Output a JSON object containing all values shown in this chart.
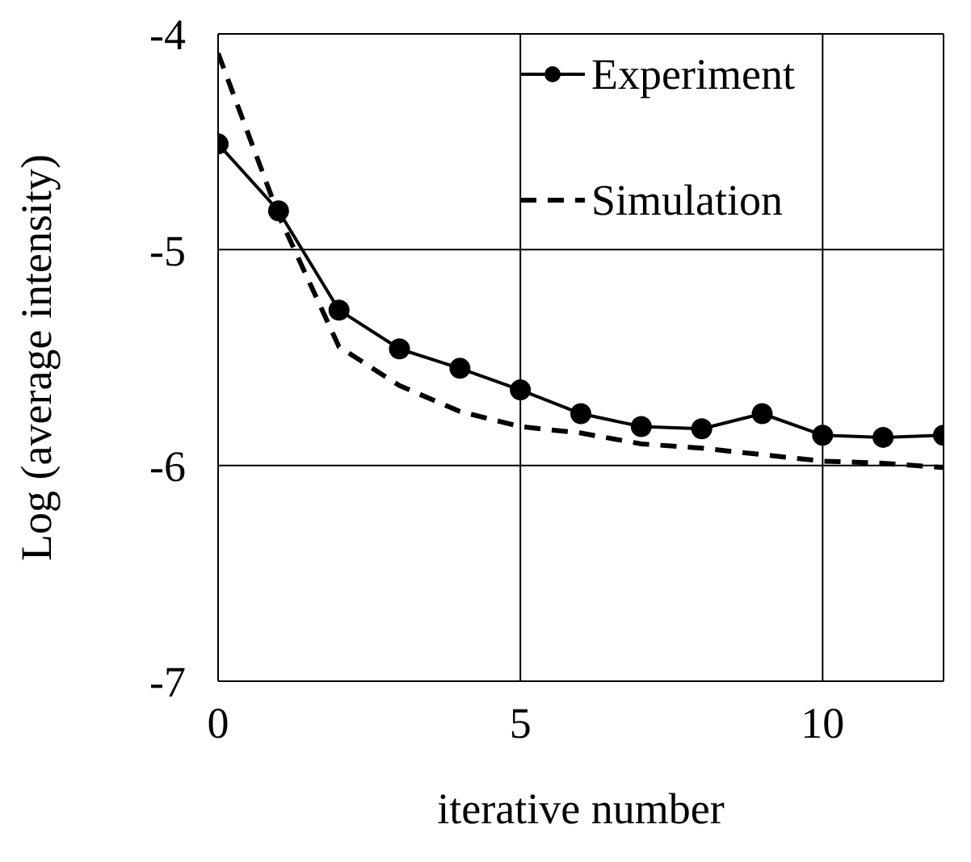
{
  "chart_data": {
    "type": "line",
    "xlabel": "iterative number",
    "ylabel": "Log (average intensity)",
    "x": [
      0,
      1,
      2,
      3,
      4,
      5,
      6,
      7,
      8,
      9,
      10,
      11,
      12
    ],
    "series": [
      {
        "name": "Experiment",
        "color": "#000000",
        "marker": "circle",
        "line_style": "solid",
        "values": [
          -4.51,
          -4.82,
          -5.28,
          -5.46,
          -5.55,
          -5.65,
          -5.76,
          -5.82,
          -5.83,
          -5.76,
          -5.86,
          -5.87,
          -5.86
        ]
      },
      {
        "name": "Simulation",
        "color": "#000000",
        "marker": "none",
        "line_style": "dashed",
        "values": [
          -4.09,
          -4.84,
          -5.45,
          -5.63,
          -5.75,
          -5.82,
          -5.85,
          -5.9,
          -5.92,
          -5.95,
          -5.98,
          -5.99,
          -6.01
        ]
      }
    ],
    "xlim": [
      0,
      12
    ],
    "xticks": [
      0,
      5,
      10
    ],
    "ylim": [
      -7,
      -4
    ],
    "yticks": [
      -4,
      -5,
      -6,
      -7
    ],
    "grid": true,
    "legend": "top right"
  }
}
